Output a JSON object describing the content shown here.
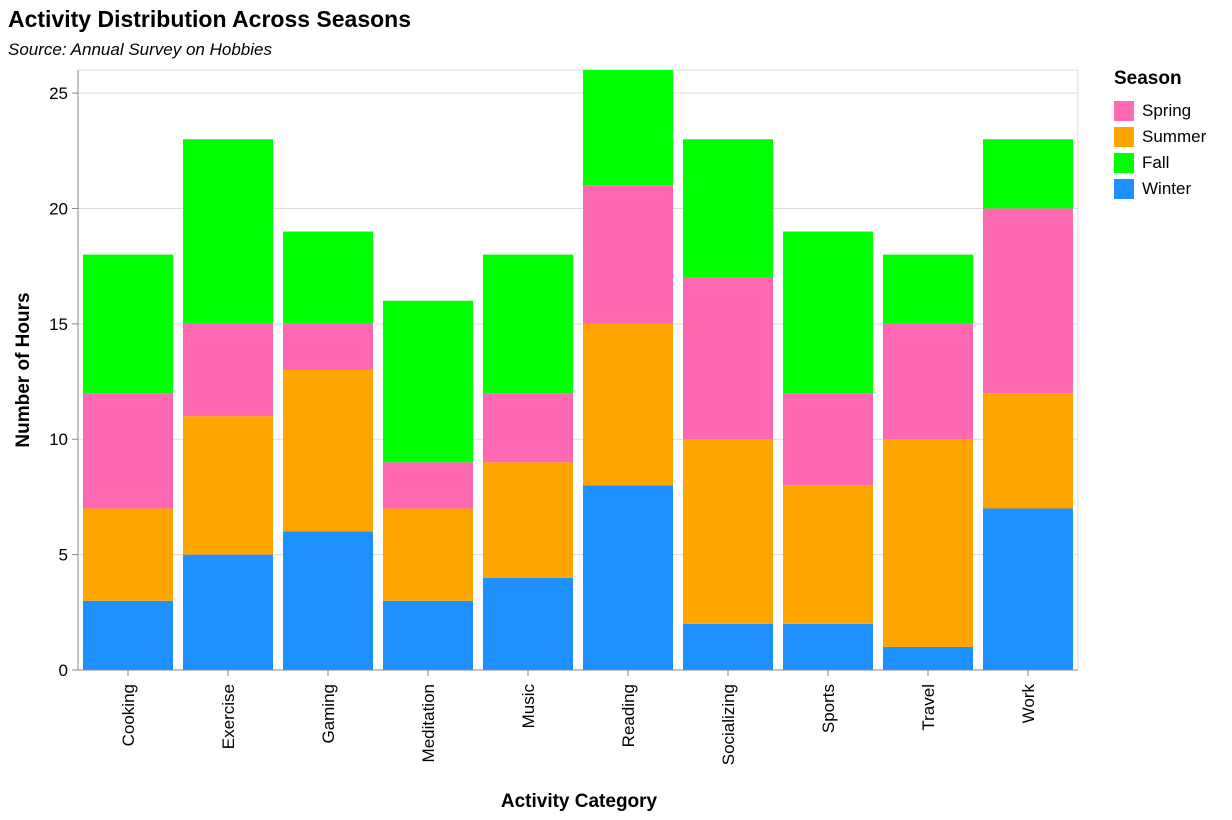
{
  "chart_data": {
    "type": "bar",
    "stacked": true,
    "title": "Activity Distribution Across Seasons",
    "subtitle": "Source: Annual Survey on Hobbies",
    "xlabel": "Activity Category",
    "ylabel": "Number of Hours",
    "ylim": [
      0,
      26
    ],
    "yticks": [
      0,
      5,
      10,
      15,
      20,
      25
    ],
    "grid": true,
    "legend": {
      "title": "Season",
      "placement": "right"
    },
    "categories": [
      "Cooking",
      "Exercise",
      "Gaming",
      "Meditation",
      "Music",
      "Reading",
      "Socializing",
      "Sports",
      "Travel",
      "Work"
    ],
    "series": [
      {
        "name": "Winter",
        "color": "#1e90ff",
        "values": [
          3,
          5,
          6,
          3,
          4,
          8,
          2,
          2,
          1,
          7
        ]
      },
      {
        "name": "Summer",
        "color": "#ffa500",
        "values": [
          4,
          6,
          7,
          4,
          5,
          7,
          8,
          6,
          9,
          5
        ]
      },
      {
        "name": "Spring",
        "color": "#ff69b4",
        "values": [
          5,
          4,
          2,
          2,
          3,
          6,
          7,
          4,
          5,
          8
        ]
      },
      {
        "name": "Fall",
        "color": "#00ff00",
        "values": [
          6,
          8,
          4,
          7,
          6,
          5,
          6,
          7,
          3,
          3
        ]
      }
    ],
    "legend_order": [
      "Spring",
      "Summer",
      "Fall",
      "Winter"
    ]
  }
}
